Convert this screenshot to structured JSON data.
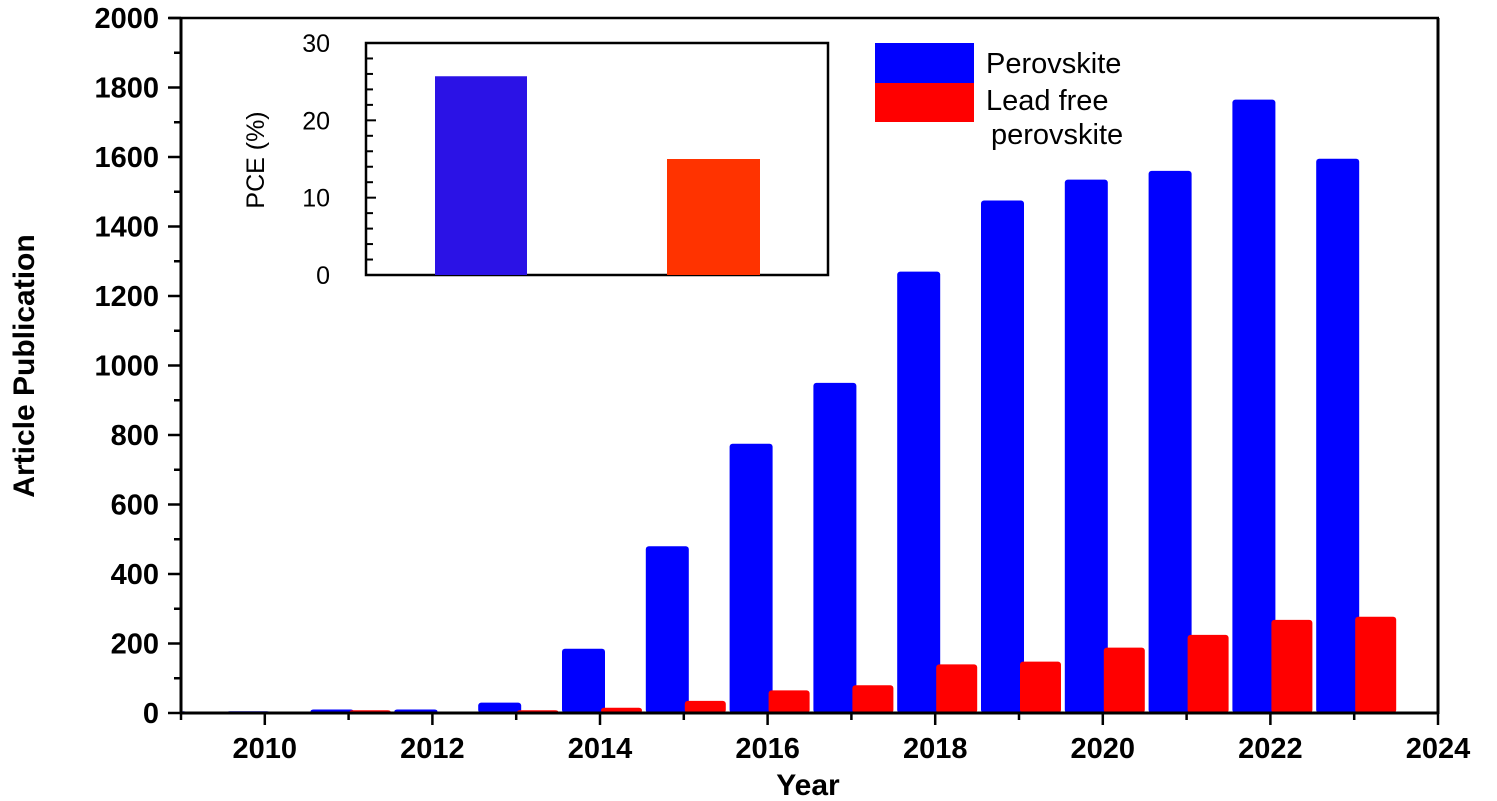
{
  "chart_data": [
    {
      "type": "bar",
      "title": "",
      "xlabel": "Year",
      "ylabel": "Article Publication",
      "ylim": [
        0,
        2000
      ],
      "xlim": [
        2009,
        2024
      ],
      "yticks": [
        0,
        200,
        400,
        600,
        800,
        1000,
        1200,
        1400,
        1600,
        1800,
        2000
      ],
      "xticks": [
        2010,
        2012,
        2014,
        2016,
        2018,
        2020,
        2022,
        2024
      ],
      "grid": false,
      "legend_position": "upper right",
      "categories": [
        2009,
        2010,
        2011,
        2012,
        2013,
        2014,
        2015,
        2016,
        2017,
        2018,
        2019,
        2020,
        2021,
        2022,
        2023
      ],
      "series": [
        {
          "name": "Perovskite",
          "color": "#0000ff",
          "values": [
            5,
            5,
            10,
            10,
            30,
            185,
            480,
            775,
            950,
            1270,
            1475,
            1535,
            1560,
            1765,
            1595
          ]
        },
        {
          "name": "Lead free perovskite",
          "color": "#ff0000",
          "values": [
            0,
            0,
            8,
            3,
            8,
            15,
            35,
            65,
            80,
            140,
            148,
            188,
            225,
            268,
            277
          ]
        }
      ]
    },
    {
      "type": "bar",
      "title": "inset",
      "xlabel": "",
      "ylabel": "PCE (%)",
      "ylim": [
        0,
        30
      ],
      "yticks": [
        0,
        10,
        20,
        30
      ],
      "categories": [
        "Perovskite",
        "Lead free perovskite"
      ],
      "values": [
        25.7,
        15.0
      ],
      "colors": [
        "#2b12e6",
        "#ff3300"
      ]
    }
  ],
  "main": {
    "ylabel": "Article Publication",
    "xlabel": "Year",
    "yticks": [
      "0",
      "200",
      "400",
      "600",
      "800",
      "1000",
      "1200",
      "1400",
      "1600",
      "1800",
      "2000"
    ],
    "xticks": [
      "2010",
      "2012",
      "2014",
      "2016",
      "2018",
      "2020",
      "2022",
      "2024"
    ]
  },
  "inset": {
    "ylabel": "PCE (%)",
    "yticks": [
      "0",
      "10",
      "20",
      "30"
    ]
  },
  "legend": {
    "items": [
      {
        "label": "Perovskite",
        "color": "#0000ff"
      },
      {
        "label_line1": "Lead free",
        "label_line2": "perovskite",
        "color": "#ff0000"
      }
    ]
  }
}
